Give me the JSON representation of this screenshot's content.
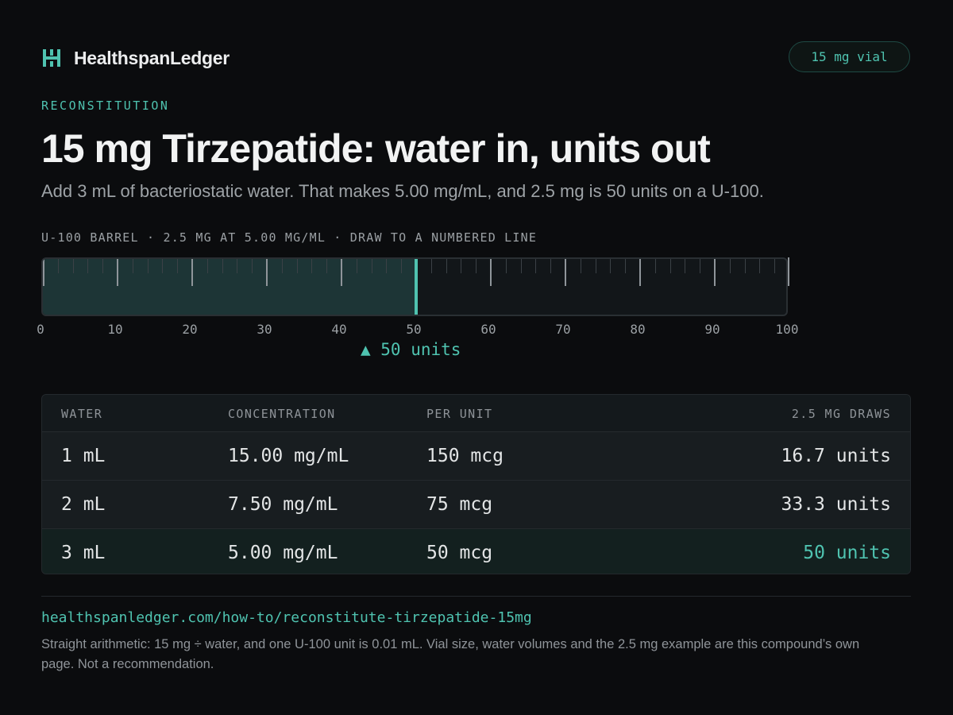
{
  "header": {
    "brand_name": "HealthspanLedger",
    "vial_badge": "15 mg vial"
  },
  "hero": {
    "eyebrow": "RECONSTITUTION",
    "title": "15 mg Tirzepatide:  water  in, units out",
    "subtitle": "Add 3 mL of bacteriostatic  water. That makes 5.00 mg/mL, and 2.5 mg is 50 units on a U-100."
  },
  "barrel": {
    "caption": "U-100 BARREL · 2.5 MG AT 5.00 MG/ML · DRAW TO A NUMBERED LINE",
    "scale_min": 0,
    "scale_max": 100,
    "fill_units": 50,
    "tick_labels": [
      "0",
      "10",
      "20",
      "30",
      "40",
      "50",
      "60",
      "70",
      "80",
      "90",
      "100"
    ],
    "draw_label": "▲ 50 units"
  },
  "table": {
    "headers": [
      "WATER",
      "CONCENTRATION",
      "PER UNIT",
      "2.5 MG DRAWS"
    ],
    "rows": [
      {
        "water": "1 mL",
        "concentration": "15.00 mg/mL",
        "per_unit": "150 mcg",
        "draws": "16.7 units"
      },
      {
        "water": "2 mL",
        "concentration": "7.50 mg/mL",
        "per_unit": "75 mcg",
        "draws": "33.3 units"
      },
      {
        "water": "3 mL",
        "concentration": "5.00 mg/mL",
        "per_unit": "50 mcg",
        "draws": "50 units"
      }
    ],
    "highlight_row": 2
  },
  "footer": {
    "url": "healthspanledger.com/how-to/reconstitute-tirzepatide-15mg",
    "note": "Straight arithmetic:  15 mg ÷ water,  and one U-100 unit is 0.01 mL. Vial size, water  volumes and the 2.5 mg example are this compound’s own page. Not a recommendation."
  },
  "colors": {
    "accent": "#4fc3b0",
    "background": "#0b0c0e"
  },
  "icons": {
    "brand_logo": "hl-monogram-icon"
  }
}
